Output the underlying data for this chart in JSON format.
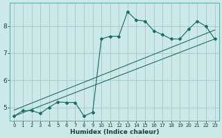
{
  "xlabel": "Humidex (Indice chaleur)",
  "bg_color": "#cce8e8",
  "grid_color": "#aacccc",
  "line_color": "#1a6e62",
  "xlim": [
    -0.5,
    23.5
  ],
  "ylim": [
    4.5,
    8.85
  ],
  "yticks": [
    5,
    6,
    7,
    8
  ],
  "xticks": [
    0,
    1,
    2,
    3,
    4,
    5,
    6,
    7,
    8,
    9,
    10,
    11,
    12,
    13,
    14,
    15,
    16,
    17,
    18,
    19,
    20,
    21,
    22,
    23
  ],
  "main_x": [
    0,
    1,
    2,
    3,
    4,
    5,
    6,
    7,
    8,
    9,
    10,
    11,
    12,
    13,
    14,
    15,
    16,
    17,
    18,
    19,
    20,
    21,
    22,
    23
  ],
  "main_y": [
    4.68,
    4.88,
    4.88,
    4.78,
    5.0,
    5.2,
    5.18,
    5.18,
    4.68,
    4.82,
    7.52,
    7.62,
    7.62,
    8.52,
    8.22,
    8.18,
    7.82,
    7.68,
    7.52,
    7.52,
    7.88,
    8.18,
    7.98,
    7.52
  ],
  "trend1_x": [
    0,
    23
  ],
  "trend1_y": [
    4.68,
    7.52
  ],
  "trend2_x": [
    0,
    23
  ],
  "trend2_y": [
    4.9,
    7.85
  ]
}
